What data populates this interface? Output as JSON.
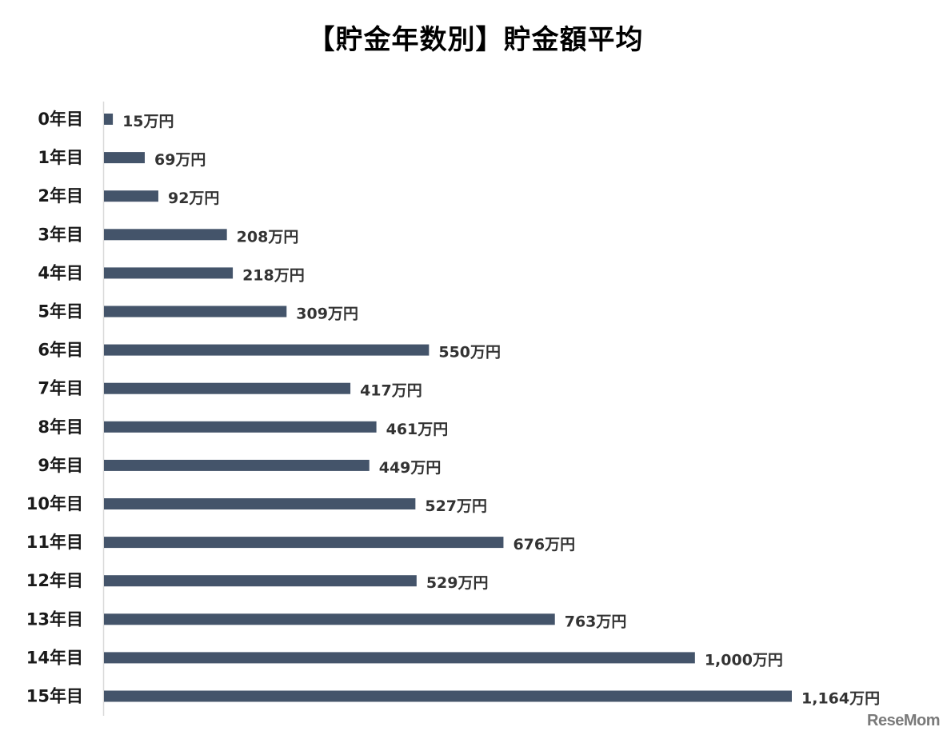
{
  "chart_data": {
    "type": "bar",
    "orientation": "horizontal",
    "title": "【貯金年数別】貯金額平均",
    "categories": [
      "0年目",
      "1年目",
      "2年目",
      "3年目",
      "4年目",
      "5年目",
      "6年目",
      "7年目",
      "8年目",
      "9年目",
      "10年目",
      "11年目",
      "12年目",
      "13年目",
      "14年目",
      "15年目"
    ],
    "values": [
      15,
      69,
      92,
      208,
      218,
      309,
      550,
      417,
      461,
      449,
      527,
      676,
      529,
      763,
      1000,
      1164
    ],
    "value_labels": [
      "15万円",
      "69万円",
      "92万円",
      "208万円",
      "218万円",
      "309万円",
      "550万円",
      "417万円",
      "461万円",
      "449万円",
      "527万円",
      "676万円",
      "529万円",
      "763万円",
      "1,000万円",
      "1,164万円"
    ],
    "xlim": [
      0,
      1164
    ],
    "grid": false,
    "colors": {
      "bar": "#44546a",
      "axis": "#d9d9d9"
    }
  },
  "watermark": "ReseMom"
}
